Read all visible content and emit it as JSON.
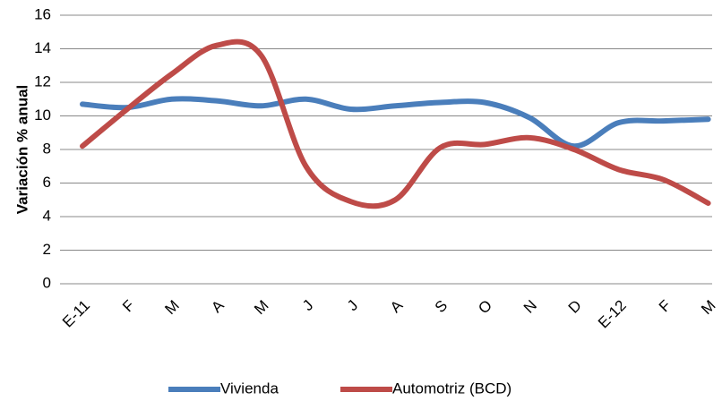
{
  "chart_data": {
    "type": "line",
    "y_label": "Variación  % anual",
    "categories": [
      "E-11",
      "F",
      "M",
      "A",
      "M",
      "J",
      "J",
      "A",
      "S",
      "O",
      "N",
      "D",
      "E-12",
      "F",
      "M"
    ],
    "series": [
      {
        "name": "Vivienda",
        "color": "#4a7ebb",
        "values": [
          10.7,
          10.5,
          11.0,
          10.9,
          10.6,
          11.0,
          10.4,
          10.6,
          10.8,
          10.8,
          9.9,
          8.2,
          9.6,
          9.7,
          9.8
        ]
      },
      {
        "name": "Automotriz (BCD)",
        "color": "#be4b48",
        "values": [
          8.2,
          10.4,
          12.5,
          14.2,
          13.6,
          7.0,
          4.9,
          5.0,
          8.1,
          8.3,
          8.7,
          8.0,
          6.8,
          6.2,
          4.8
        ]
      }
    ],
    "ylim": [
      0,
      16
    ],
    "yticks": [
      0,
      2,
      4,
      6,
      8,
      10,
      12,
      14,
      16
    ],
    "grid": true
  }
}
